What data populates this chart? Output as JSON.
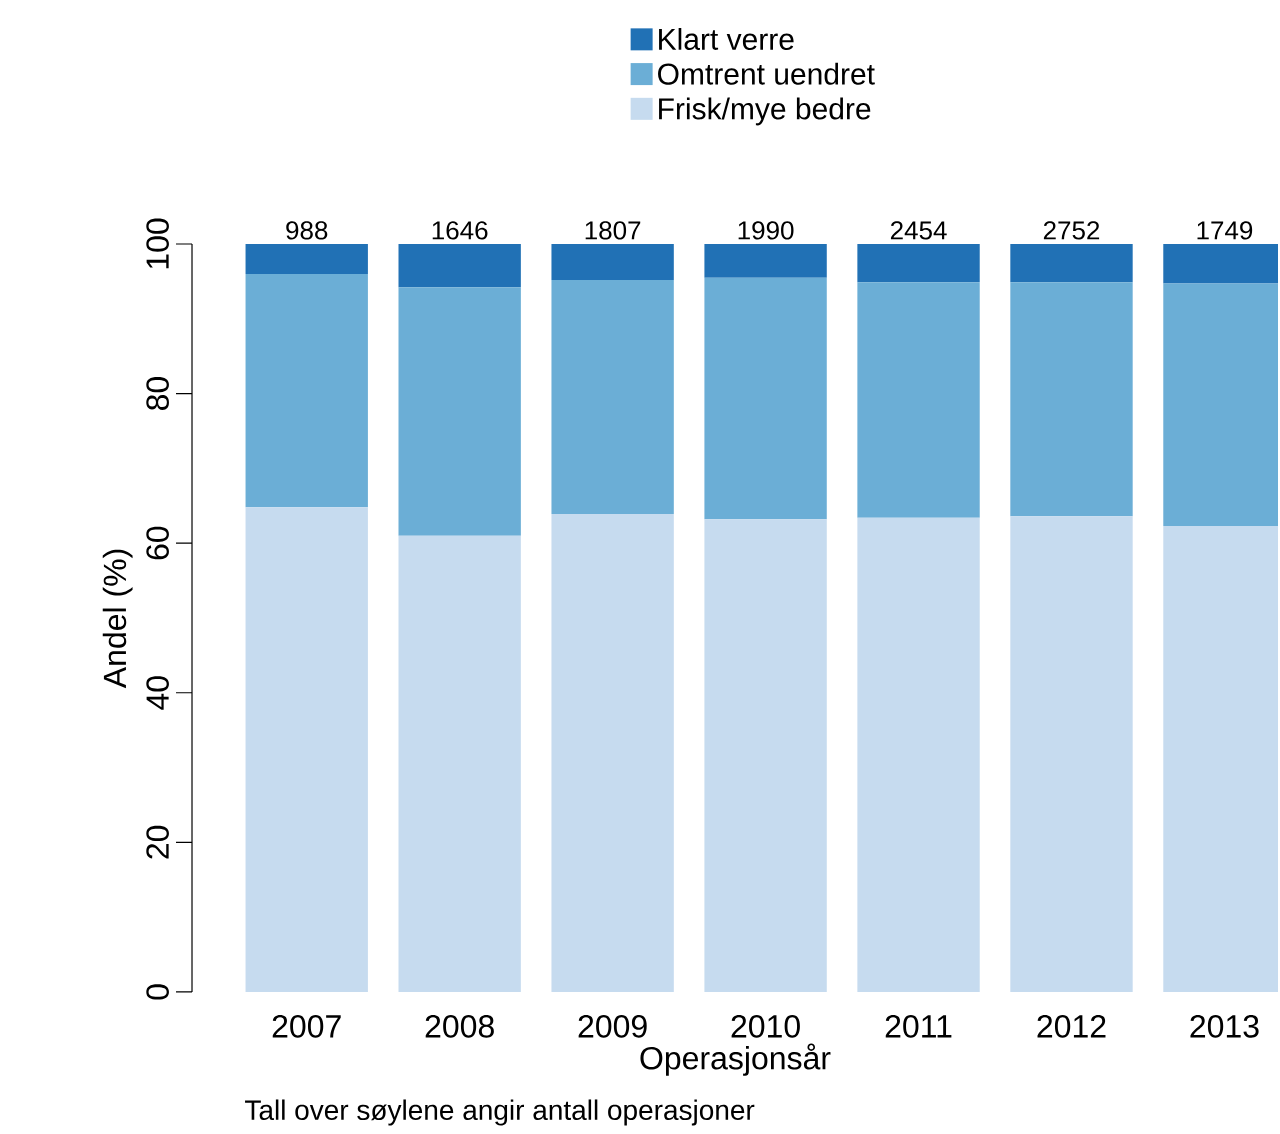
{
  "chart_data": {
    "type": "bar",
    "stacked": true,
    "categories": [
      "2007",
      "2008",
      "2009",
      "2010",
      "2011",
      "2012",
      "2013"
    ],
    "series": [
      {
        "name": "Frisk/mye bedre",
        "color": "#c6dbef",
        "values": [
          64.8,
          61.0,
          63.9,
          63.2,
          63.4,
          63.6,
          62.3
        ]
      },
      {
        "name": "Omtrent uendret",
        "color": "#6baed6",
        "values": [
          31.2,
          33.2,
          31.3,
          32.3,
          31.5,
          31.3,
          32.4
        ]
      },
      {
        "name": "Klart verre",
        "color": "#2171b5",
        "values": [
          4.0,
          5.8,
          4.8,
          4.5,
          5.1,
          5.1,
          5.3
        ]
      }
    ],
    "ylim": [
      0,
      100
    ],
    "yticks": [
      0,
      20,
      40,
      60,
      80,
      100
    ],
    "xlabel": "Operasjonsår",
    "ylabel": "Andel (%)",
    "legend": "top",
    "annotations": [
      {
        "text": "988",
        "x": "2007",
        "y": 100
      },
      {
        "text": "1646",
        "x": "2008",
        "y": 100
      },
      {
        "text": "1807",
        "x": "2009",
        "y": 100
      },
      {
        "text": "1990",
        "x": "2010",
        "y": 100
      },
      {
        "text": "2454",
        "x": "2011",
        "y": 100
      },
      {
        "text": "2752",
        "x": "2012",
        "y": 100
      },
      {
        "text": "1749",
        "x": "2013",
        "y": 100
      },
      "Tall over søylene angir antall operasjoner"
    ]
  }
}
